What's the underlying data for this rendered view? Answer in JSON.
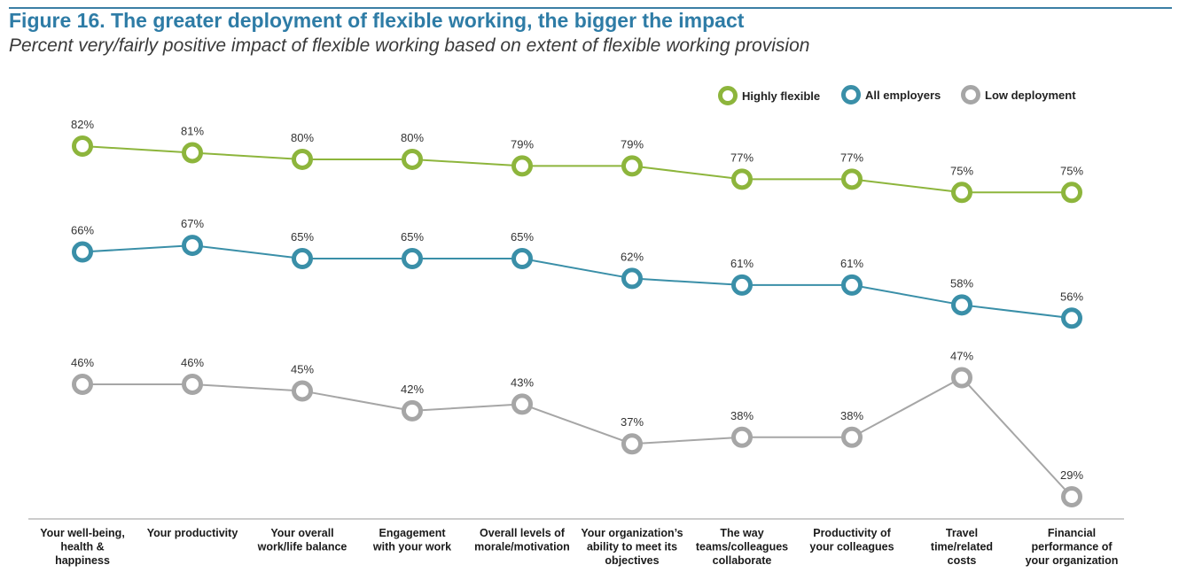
{
  "header": {
    "title": "Figure 16. The greater deployment of flexible working, the bigger the impact",
    "subtitle": "Percent very/fairly positive impact of flexible working based on extent of flexible working provision"
  },
  "chart_data": {
    "type": "line",
    "title": "Figure 16. The greater deployment of flexible working, the bigger the impact",
    "subtitle": "Percent very/fairly positive impact of flexible working based on extent of flexible working provision",
    "categories": [
      [
        "Your well-being,",
        "health &",
        "happiness"
      ],
      [
        "Your productivity"
      ],
      [
        "Your overall",
        "work/life balance"
      ],
      [
        "Engagement",
        "with your work"
      ],
      [
        "Overall levels of",
        "morale/motivation"
      ],
      [
        "Your organization’s",
        "ability to meet its",
        "objectives"
      ],
      [
        "The way",
        "teams/colleagues",
        "collaborate"
      ],
      [
        "Productivity of",
        "your colleagues"
      ],
      [
        "Travel",
        "time/related",
        "costs"
      ],
      [
        "Financial",
        "performance of",
        "your organization"
      ]
    ],
    "series": [
      {
        "name": "Highly flexible",
        "color": "#8db53c",
        "values": [
          82,
          81,
          80,
          80,
          79,
          79,
          77,
          77,
          75,
          75
        ]
      },
      {
        "name": "All employers",
        "color": "#3a8fa8",
        "values": [
          66,
          67,
          65,
          65,
          65,
          62,
          61,
          61,
          58,
          56
        ]
      },
      {
        "name": "Low deployment",
        "color": "#a6a6a6",
        "values": [
          46,
          46,
          45,
          42,
          43,
          37,
          38,
          38,
          47,
          29
        ]
      }
    ],
    "value_suffix": "%",
    "ylim": [
      29,
      82
    ],
    "legend_position": "top-right",
    "grid": false
  }
}
